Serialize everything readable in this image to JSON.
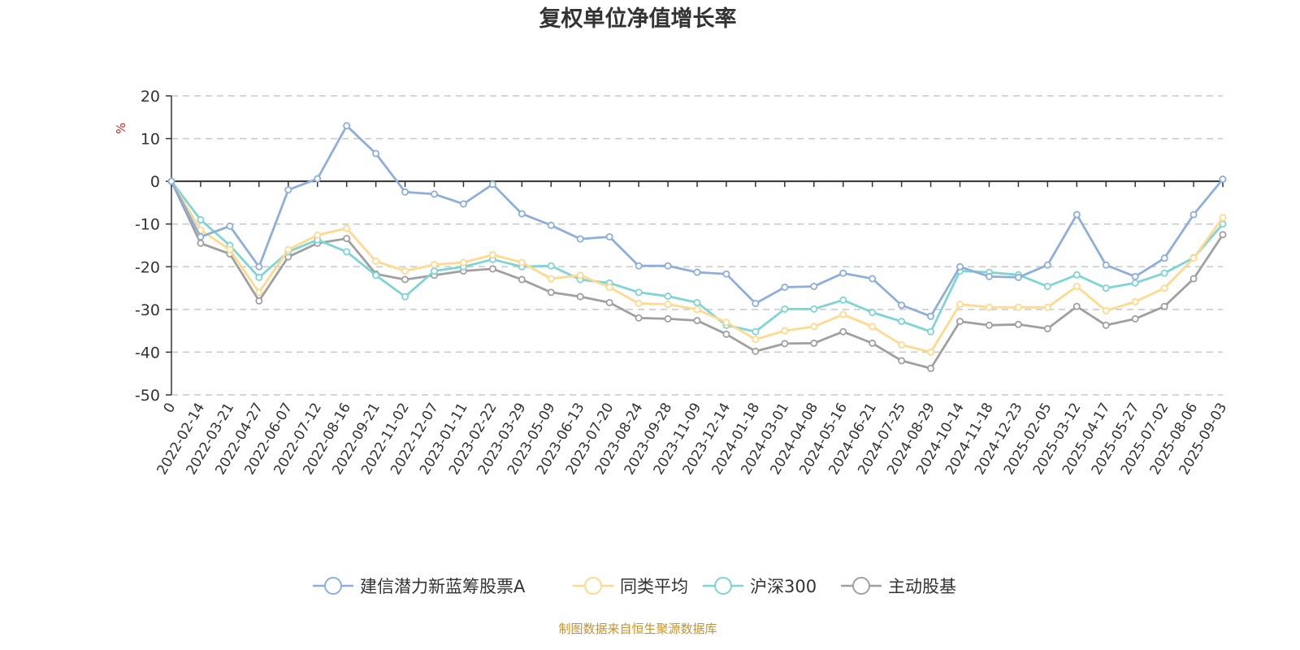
{
  "chart_data": {
    "type": "line",
    "title": "复权单位净值增长率",
    "ylabel": "%",
    "ylim": [
      -50,
      20
    ],
    "yticks": [
      20,
      10,
      0,
      -10,
      -20,
      -30,
      -40,
      -50
    ],
    "grid": true,
    "legend_position": "bottom",
    "categories": [
      "0",
      "2022-02-14",
      "2022-03-21",
      "2022-04-27",
      "2022-06-07",
      "2022-07-12",
      "2022-08-16",
      "2022-09-21",
      "2022-11-02",
      "2022-12-07",
      "2023-01-11",
      "2023-02-22",
      "2023-03-29",
      "2023-05-09",
      "2023-06-13",
      "2023-07-20",
      "2023-08-24",
      "2023-09-28",
      "2023-11-09",
      "2023-12-14",
      "2024-01-18",
      "2024-03-01",
      "2024-04-08",
      "2024-05-16",
      "2024-06-21",
      "2024-07-25",
      "2024-08-29",
      "2024-10-14",
      "2024-11-18",
      "2024-12-23",
      "2025-02-05",
      "2025-03-12",
      "2025-04-17",
      "2025-05-27",
      "2025-07-02",
      "2025-08-06",
      "2025-09-03"
    ],
    "series": [
      {
        "name": "建信潜力新蓝筹股票A",
        "color": "#8eaedb",
        "values": [
          0,
          -13,
          -10.5,
          -20,
          -2,
          0.6,
          13,
          6.5,
          -2.5,
          -3,
          -5.3,
          -0.7,
          -7.6,
          -10.3,
          -13.5,
          -13,
          -19.8,
          -19.8,
          -21.3,
          -21.7,
          -28.6,
          -24.8,
          -24.6,
          -21.5,
          -22.8,
          -29,
          -31.6,
          -20,
          -22.3,
          -22.5,
          -19.6,
          -7.8,
          -19.6,
          -22.3,
          -18,
          -7.8,
          0.5
        ]
      },
      {
        "name": "同类平均",
        "color": "#ffd98e",
        "values": [
          0,
          -11.4,
          -16,
          -26,
          -16,
          -12.6,
          -11,
          -18.7,
          -21,
          -19.5,
          -19,
          -17.2,
          -19,
          -22.8,
          -22,
          -24.8,
          -28.6,
          -28.8,
          -30,
          -33,
          -37,
          -35,
          -34,
          -31.2,
          -34,
          -38.3,
          -40,
          -28.8,
          -29.5,
          -29.5,
          -29.5,
          -24.6,
          -30.3,
          -28.2,
          -25,
          -18,
          -8.5
        ]
      },
      {
        "name": "沪深300",
        "color": "#7fd4d4",
        "values": [
          0,
          -9,
          -15,
          -22.5,
          -16.5,
          -13.7,
          -16.5,
          -22,
          -27,
          -21,
          -20,
          -18.3,
          -20,
          -19.8,
          -23,
          -23.8,
          -26,
          -26.9,
          -28.4,
          -33.7,
          -35.2,
          -29.9,
          -29.9,
          -27.8,
          -30.7,
          -32.8,
          -35.2,
          -21,
          -21.3,
          -21.9,
          -24.6,
          -21.9,
          -25,
          -23.8,
          -21.5,
          -17.9,
          -10
        ]
      },
      {
        "name": "主动股基",
        "color": "#a0a0a0",
        "values": [
          0,
          -14.5,
          -17,
          -28,
          -17.7,
          -14.5,
          -13.4,
          -21.7,
          -23,
          -22,
          -21,
          -20.5,
          -23,
          -26,
          -27,
          -28.4,
          -32,
          -32.2,
          -32.6,
          -35.8,
          -39.8,
          -38,
          -37.9,
          -35.2,
          -37.9,
          -42,
          -43.8,
          -32.8,
          -33.7,
          -33.5,
          -34.5,
          -29.3,
          -33.7,
          -32.2,
          -29.3,
          -22.8,
          -12.5
        ]
      }
    ]
  },
  "footer": "制图数据来自恒生聚源数据库"
}
